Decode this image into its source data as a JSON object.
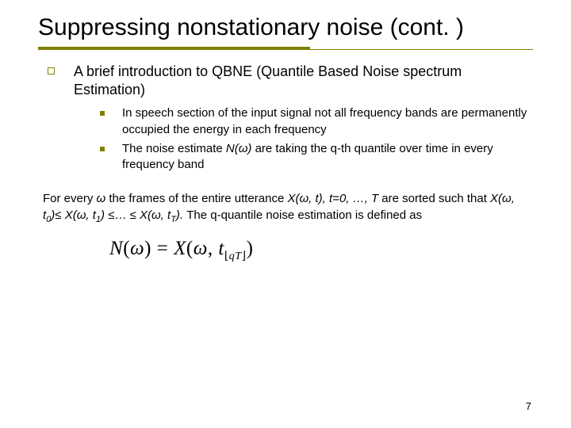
{
  "title": "Suppressing nonstationary noise (cont. )",
  "colors": {
    "accent": "#808000",
    "text": "#000000",
    "background": "#ffffff"
  },
  "typography": {
    "title_fontsize": 30,
    "level1_fontsize": 18,
    "level2_fontsize": 15,
    "body_fontsize": 15,
    "equation_fontsize": 25,
    "pagenum_fontsize": 13,
    "font_family": "Verdana"
  },
  "level1": {
    "text": "A brief introduction to QBNE (Quantile Based Noise spectrum Estimation)"
  },
  "level2": [
    {
      "text": "In speech section of the input signal not all frequency bands are permanently occupied the energy in each frequency"
    },
    {
      "pre": "The noise estimate ",
      "mid": "N(ω)",
      "post": " are taking the q-th quantile over time in every frequency band"
    }
  ],
  "body": {
    "t1": "For every ",
    "t2": "ω",
    "t3": " the frames of the entire utterance ",
    "t4": "X(ω, t), t=0, …, T",
    "t5": " are sorted such that ",
    "t6a": "X(ω, t",
    "t6s": "0",
    "t6b": ")",
    "le1": "≤ ",
    "t7a": "X(ω, t",
    "t7s": "1",
    "t7b": ") ",
    "le2": "≤… ≤ ",
    "t8a": "X(ω, t",
    "t8s": "T",
    "t8b": "). ",
    "t9": "The q-quantile noise estimation is defined as"
  },
  "equation": {
    "lhs": "N",
    "lp": "(",
    "omega": "ω",
    "rp": ")",
    "eq": " = ",
    "rhsX": "X",
    "lp2": "(",
    "omega2": "ω",
    "comma": ", ",
    "tvar": "t",
    "floor_l": "⌊",
    "qT": "qT",
    "floor_r": "⌋",
    "rp2": ")"
  },
  "page_number": "7"
}
